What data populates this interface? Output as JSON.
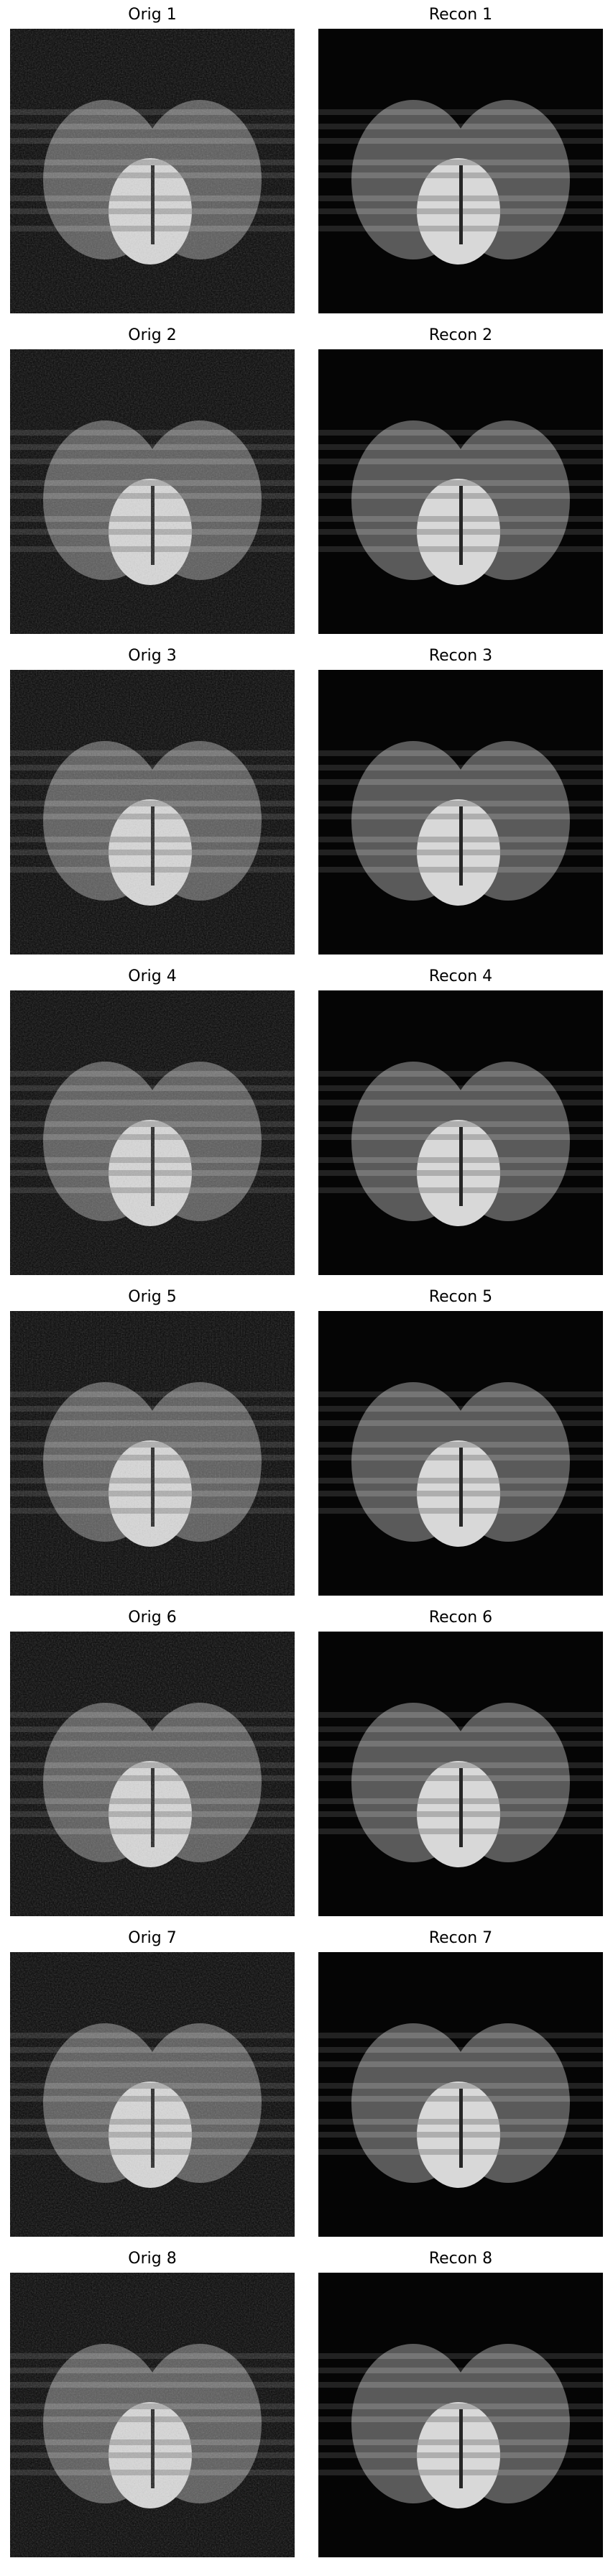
{
  "figure": {
    "panels": [
      {
        "row": 1,
        "orig_title": "Orig 1",
        "recon_title": "Recon 1"
      },
      {
        "row": 2,
        "orig_title": "Orig 2",
        "recon_title": "Recon 2"
      },
      {
        "row": 3,
        "orig_title": "Orig 3",
        "recon_title": "Recon 3"
      },
      {
        "row": 4,
        "orig_title": "Orig 4",
        "recon_title": "Recon 4"
      },
      {
        "row": 5,
        "orig_title": "Orig 5",
        "recon_title": "Recon 5"
      },
      {
        "row": 6,
        "orig_title": "Orig 6",
        "recon_title": "Recon 6"
      },
      {
        "row": 7,
        "orig_title": "Orig 7",
        "recon_title": "Recon 7"
      },
      {
        "row": 8,
        "orig_title": "Orig 8",
        "recon_title": "Recon 8"
      }
    ],
    "colors": {
      "background": "#050505",
      "outer_lobe": "#5a5a5a",
      "inner_blob": "#d8d8d8",
      "stripe": "#8c8c8c",
      "divider": "#262626"
    }
  }
}
